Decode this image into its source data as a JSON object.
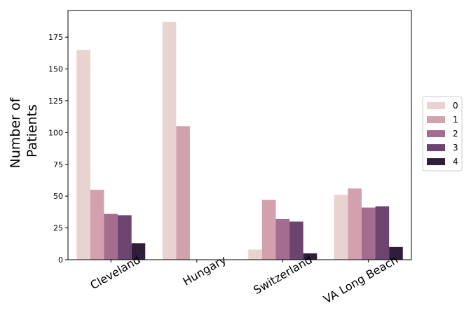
{
  "chart_data": {
    "type": "bar",
    "categories": [
      "Cleveland",
      "Hungary",
      "Switzerland",
      "VA Long Beach"
    ],
    "series": [
      {
        "name": "0",
        "color": "#e9d3d0",
        "values": [
          165,
          187,
          8,
          51
        ]
      },
      {
        "name": "1",
        "color": "#d3a1ad",
        "values": [
          55,
          105,
          47,
          56
        ]
      },
      {
        "name": "2",
        "color": "#a46d8f",
        "values": [
          36,
          0,
          32,
          41
        ]
      },
      {
        "name": "3",
        "color": "#6b4470",
        "values": [
          35,
          0,
          30,
          42
        ]
      },
      {
        "name": "4",
        "color": "#2e1e3c",
        "values": [
          13,
          0,
          5,
          10
        ]
      }
    ],
    "title": "",
    "xlabel": "",
    "ylabel_lines": [
      "Number of",
      "Patients"
    ],
    "ylim": [
      0,
      196
    ],
    "yticks": [
      0,
      25,
      50,
      75,
      100,
      125,
      150,
      175
    ],
    "xtick_rotation": 30,
    "grid": false,
    "legend_position": "right"
  }
}
